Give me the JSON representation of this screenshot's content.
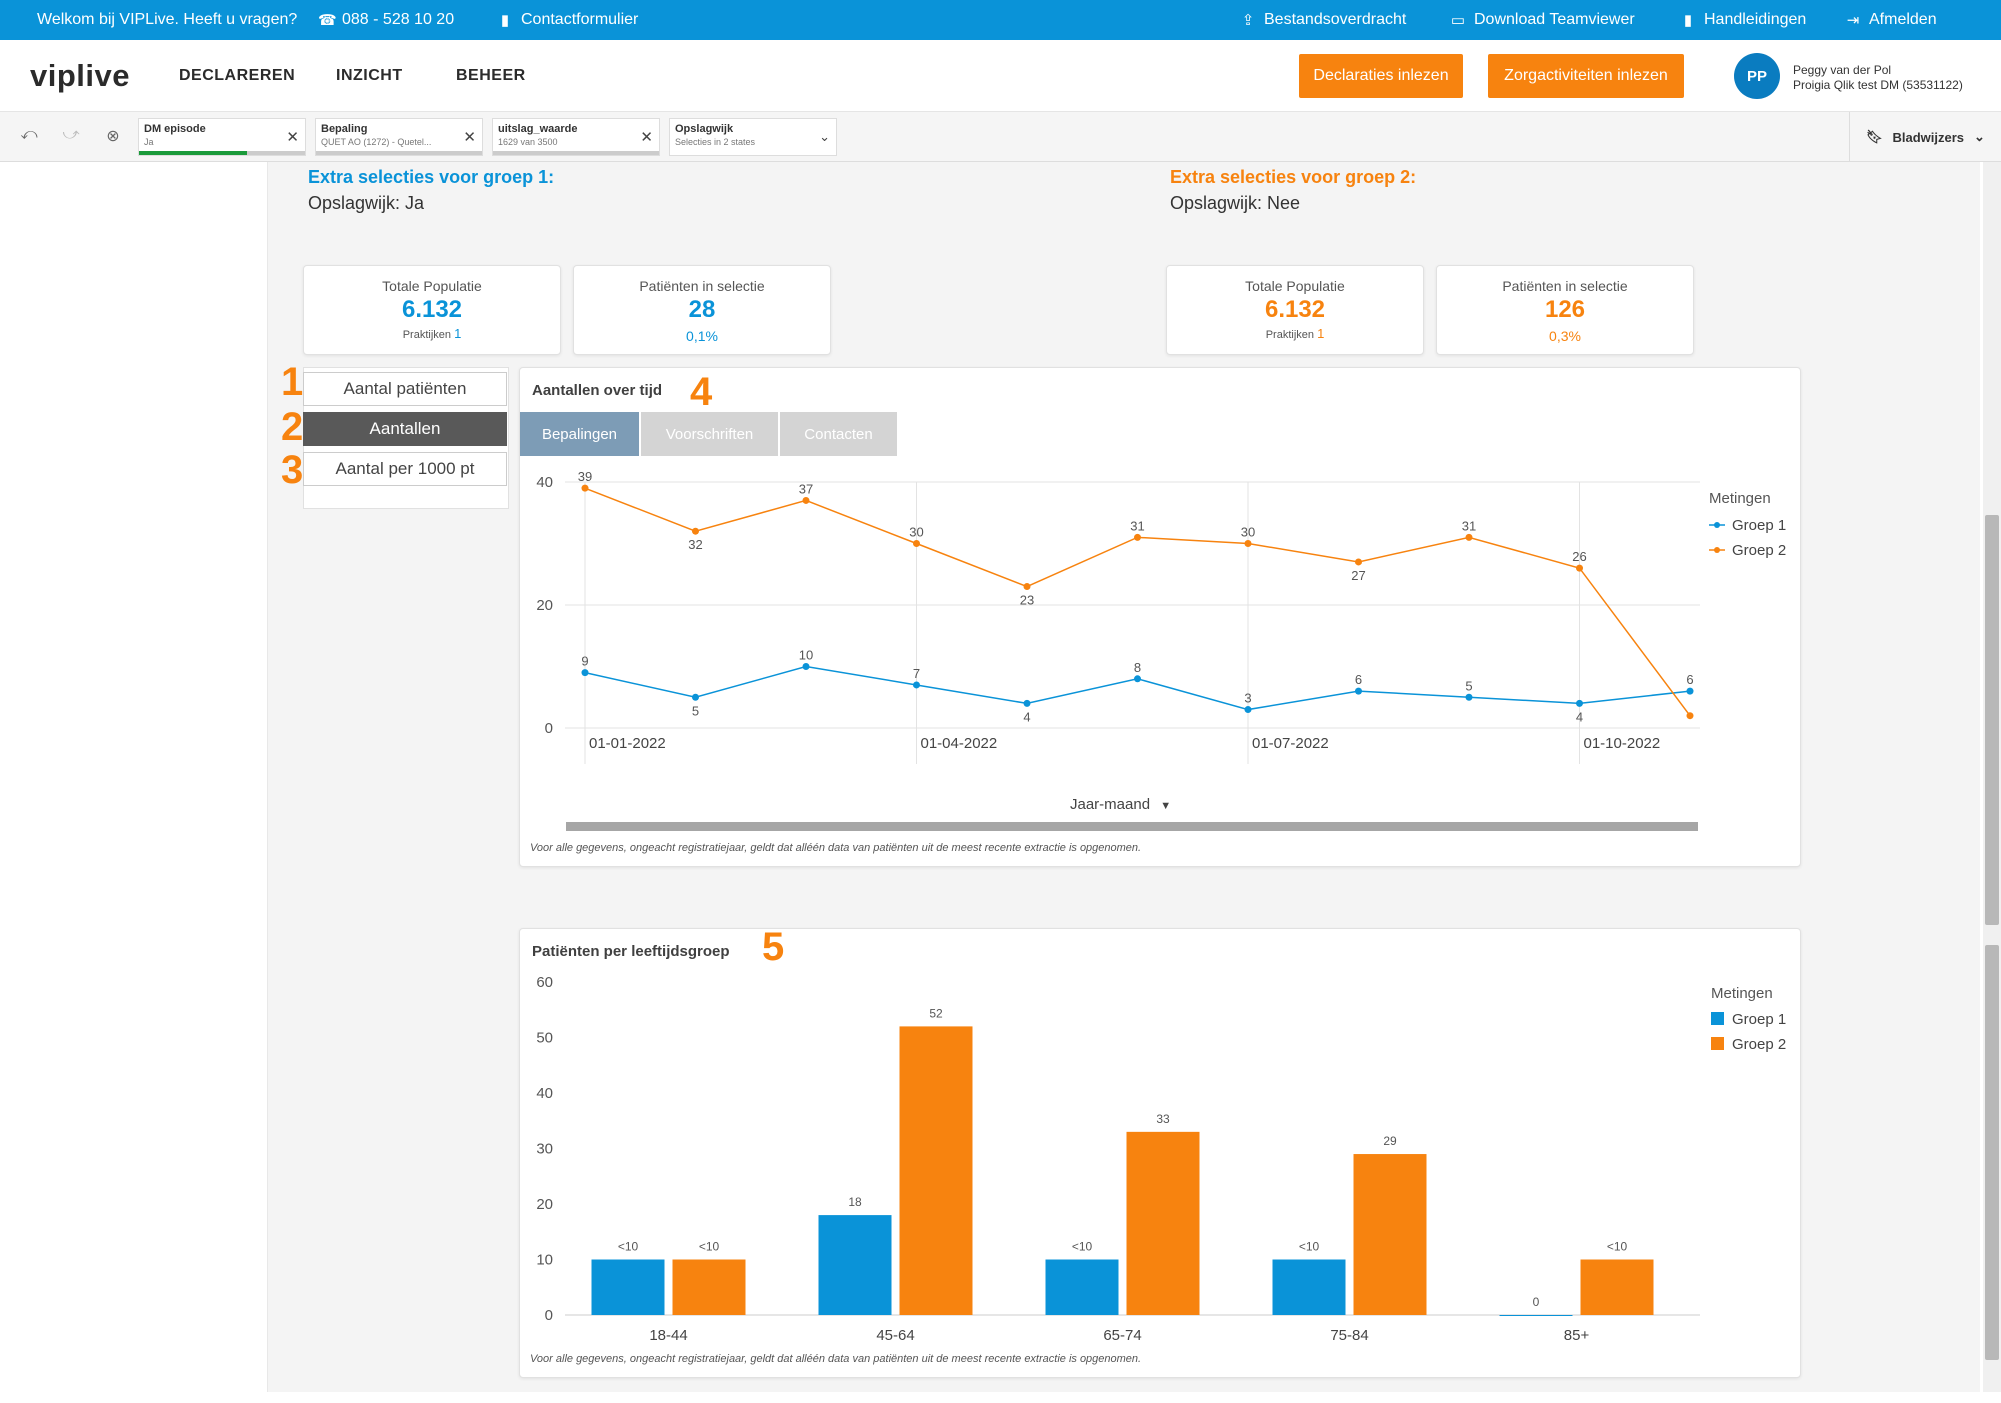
{
  "topbar": {
    "welcome": "Welkom bij VIPLive. Heeft u vragen?",
    "phone": "088 - 528 10 20",
    "contact": "Contactformulier",
    "transfer": "Bestandsoverdracht",
    "teamviewer": "Download Teamviewer",
    "manuals": "Handleidingen",
    "logout": "Afmelden"
  },
  "nav": {
    "logo": "viplive",
    "items": [
      "DECLAREREN",
      "INZICHT",
      "BEHEER"
    ],
    "btn_declaraties": "Declaraties inlezen",
    "btn_zorg": "Zorgactiviteiten inlezen",
    "avatar_initials": "PP",
    "user_name": "Peggy van der Pol",
    "user_sub": "Proigia Qlik test DM (53531122)"
  },
  "selections": {
    "chips": [
      {
        "title": "DM episode",
        "sub": "Ja",
        "fill": 0.65
      },
      {
        "title": "Bepaling",
        "sub": "QUET AO (1272) - Quetel...",
        "fill": 0
      },
      {
        "title": "uitslag_waarde",
        "sub": "1629 van 3500",
        "fill": 0
      },
      {
        "title": "Opslagwijk",
        "sub": "Selecties in 2 states",
        "fill": null
      }
    ],
    "bookmarks": "Bladwijzers"
  },
  "groups": {
    "g1_title": "Extra selecties voor groep 1:",
    "g1_sub": "Opslagwijk: Ja",
    "g2_title": "Extra selecties voor groep 2:",
    "g2_sub": "Opslagwijk: Nee",
    "color_g1": "#0a93d8",
    "color_g2": "#f7830f"
  },
  "kpis": {
    "g1_total_label": "Totale Populatie",
    "g1_total_value": "6.132",
    "g1_praktijken_label": "Praktijken",
    "g1_praktijken_value": "1",
    "g1_sel_label": "Patiënten in selectie",
    "g1_sel_value": "28",
    "g1_sel_pct": "0,1%",
    "g2_total_label": "Totale Populatie",
    "g2_total_value": "6.132",
    "g2_praktijken_label": "Praktijken",
    "g2_praktijken_value": "1",
    "g2_sel_label": "Patiënten in selectie",
    "g2_sel_value": "126",
    "g2_sel_pct": "0,3%"
  },
  "side_buttons": [
    "Aantal patiënten",
    "Aantallen",
    "Aantal per 1000 pt"
  ],
  "num_labels": [
    "1",
    "2",
    "3",
    "4",
    "5"
  ],
  "line_card": {
    "title": "Aantallen over tijd",
    "tabs": [
      "Bepalingen",
      "Voorschriften",
      "Contacten"
    ],
    "dimension_label": "Jaar-maand",
    "footnote": "Voor alle gegevens, ongeacht registratiejaar, geldt dat alléén data van patiënten uit de meest recente extractie is opgenomen."
  },
  "bar_card": {
    "title": "Patiënten per leeftijdsgroep",
    "footnote": "Voor alle gegevens, ongeacht registratiejaar, geldt dat alléén data van patiënten uit de meest recente extractie is opgenomen."
  },
  "chart_data": [
    {
      "type": "line",
      "title": "Aantallen over tijd",
      "xlabel": "Jaar-maand",
      "ylabel": "",
      "ylim": [
        0,
        40
      ],
      "yticks": [
        0,
        20,
        40
      ],
      "x": [
        "2022-01",
        "2022-02",
        "2022-03",
        "2022-04",
        "2022-05",
        "2022-06",
        "2022-07",
        "2022-08",
        "2022-09",
        "2022-10",
        "2022-11"
      ],
      "x_tick_labels": [
        {
          "at": "2022-01",
          "label": "01-01-2022"
        },
        {
          "at": "2022-04",
          "label": "01-04-2022"
        },
        {
          "at": "2022-07",
          "label": "01-07-2022"
        },
        {
          "at": "2022-10",
          "label": "01-10-2022"
        }
      ],
      "legend_title": "Metingen",
      "legend_position": "right",
      "grid": true,
      "series": [
        {
          "name": "Groep 1",
          "color": "#0a93d8",
          "values": [
            9,
            5,
            10,
            7,
            4,
            8,
            3,
            6,
            5,
            4,
            6
          ],
          "labels_below": [
            false,
            true,
            false,
            false,
            true,
            false,
            false,
            false,
            false,
            true,
            false
          ]
        },
        {
          "name": "Groep 2",
          "color": "#f7830f",
          "values": [
            39,
            32,
            37,
            30,
            23,
            31,
            30,
            27,
            31,
            26,
            2
          ],
          "labels_below": [
            false,
            true,
            false,
            false,
            true,
            false,
            false,
            true,
            false,
            false,
            false
          ],
          "hide_label_last": true
        }
      ]
    },
    {
      "type": "bar",
      "title": "Patiënten per leeftijdsgroep",
      "xlabel": "",
      "ylabel": "",
      "ylim": [
        0,
        60
      ],
      "yticks": [
        0,
        10,
        20,
        30,
        40,
        50,
        60
      ],
      "categories": [
        "18-44",
        "45-64",
        "65-74",
        "75-84",
        "85+"
      ],
      "legend_title": "Metingen",
      "legend_position": "right",
      "grid": false,
      "series": [
        {
          "name": "Groep 1",
          "color": "#0a93d8",
          "values": [
            10,
            18,
            10,
            10,
            0
          ],
          "labels": [
            "<10",
            "18",
            "<10",
            "<10",
            "0"
          ]
        },
        {
          "name": "Groep 2",
          "color": "#f7830f",
          "values": [
            10,
            52,
            33,
            29,
            10
          ],
          "labels": [
            "<10",
            "52",
            "33",
            "29",
            "<10"
          ]
        }
      ]
    }
  ]
}
